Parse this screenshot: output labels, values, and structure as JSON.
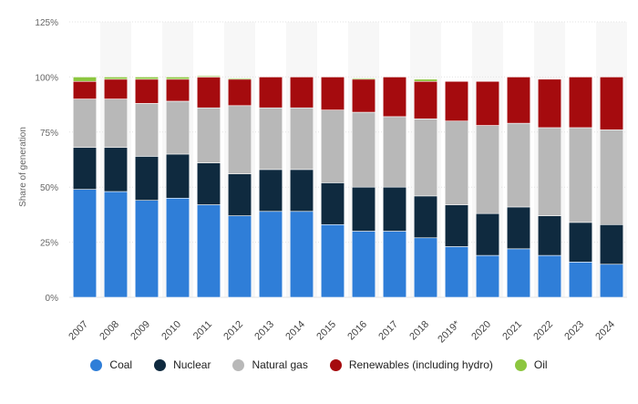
{
  "chart_data": {
    "type": "bar",
    "stacked": true,
    "title": "",
    "xlabel": "",
    "ylabel": "Share of generation",
    "ylim": [
      0,
      125
    ],
    "y_ticks": [
      "0%",
      "25%",
      "50%",
      "75%",
      "100%",
      "125%"
    ],
    "y_tick_values": [
      0,
      25,
      50,
      75,
      100,
      125
    ],
    "grid": true,
    "legend_position": "bottom",
    "categories": [
      "2007",
      "2008",
      "2009",
      "2010",
      "2011",
      "2012",
      "2013",
      "2014",
      "2015",
      "2016",
      "2017",
      "2018",
      "2019*",
      "2020",
      "2021",
      "2022",
      "2023",
      "2024"
    ],
    "series": [
      {
        "name": "Coal",
        "color": "#2f7ed8",
        "values": [
          49,
          48,
          44,
          45,
          42,
          37,
          39,
          39,
          33,
          30,
          30,
          27,
          23,
          19,
          22,
          19,
          16,
          15
        ]
      },
      {
        "name": "Nuclear",
        "color": "#0f2a3f",
        "values": [
          19,
          20,
          20,
          20,
          19,
          19,
          19,
          19,
          19,
          20,
          20,
          19,
          19,
          19,
          19,
          18,
          18,
          18
        ]
      },
      {
        "name": "Natural gas",
        "color": "#b8b8b8",
        "values": [
          22,
          22,
          24,
          24,
          25,
          31,
          28,
          28,
          33,
          34,
          32,
          35,
          38,
          40,
          38,
          40,
          43,
          43
        ]
      },
      {
        "name": "Renewables (including hydro)",
        "color": "#a50b0e",
        "values": [
          8,
          9,
          11,
          10,
          14,
          12,
          14,
          14,
          15,
          15,
          18,
          17,
          18,
          20,
          21,
          22,
          23,
          24
        ]
      },
      {
        "name": "Oil",
        "color": "#8cc63f",
        "values": [
          2,
          1,
          1,
          1,
          0.5,
          0.5,
          0,
          0,
          0,
          0.5,
          0,
          1,
          0,
          0,
          0,
          0,
          0,
          0
        ]
      }
    ]
  }
}
